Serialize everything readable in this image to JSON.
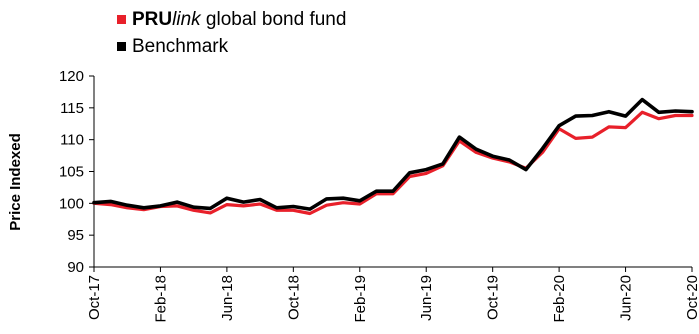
{
  "chart_data": {
    "type": "line",
    "ylabel": "Price Indexed",
    "ylim": [
      90,
      120
    ],
    "yticks": [
      90,
      95,
      100,
      105,
      110,
      115,
      120
    ],
    "xlim": [
      "2017-10",
      "2020-10"
    ],
    "xticks": [
      {
        "date": "2017-10",
        "label": "Oct-17"
      },
      {
        "date": "2018-02",
        "label": "Feb-18"
      },
      {
        "date": "2018-06",
        "label": "Jun-18"
      },
      {
        "date": "2018-10",
        "label": "Oct-18"
      },
      {
        "date": "2019-02",
        "label": "Feb-19"
      },
      {
        "date": "2019-06",
        "label": "Jun-19"
      },
      {
        "date": "2019-10",
        "label": "Oct-19"
      },
      {
        "date": "2020-02",
        "label": "Feb-20"
      },
      {
        "date": "2020-06",
        "label": "Jun-20"
      },
      {
        "date": "2020-10",
        "label": "Oct-20"
      }
    ],
    "x": [
      "2017-10",
      "2017-11",
      "2017-12",
      "2018-01",
      "2018-02",
      "2018-03",
      "2018-04",
      "2018-05",
      "2018-06",
      "2018-07",
      "2018-08",
      "2018-09",
      "2018-10",
      "2018-11",
      "2018-12",
      "2019-01",
      "2019-02",
      "2019-03",
      "2019-04",
      "2019-05",
      "2019-06",
      "2019-07",
      "2019-08",
      "2019-09",
      "2019-10",
      "2019-11",
      "2019-12",
      "2020-01",
      "2020-02",
      "2020-03",
      "2020-04",
      "2020-05",
      "2020-06",
      "2020-07",
      "2020-08",
      "2020-09",
      "2020-10"
    ],
    "series": [
      {
        "name_bold": "PRU",
        "name_italic": "link",
        "name_rest": " global bond fund",
        "color": "#e8202a",
        "values": [
          100.0,
          99.8,
          99.3,
          99.0,
          99.5,
          99.6,
          98.9,
          98.5,
          99.8,
          99.6,
          99.9,
          98.9,
          98.9,
          98.4,
          99.7,
          100.1,
          99.9,
          101.5,
          101.5,
          104.2,
          104.7,
          105.9,
          109.8,
          108.0,
          107.1,
          106.5,
          105.5,
          108.0,
          111.7,
          110.2,
          110.4,
          112.0,
          111.9,
          114.3,
          113.3,
          113.8,
          113.8
        ]
      },
      {
        "name": "Benchmark",
        "color": "#000000",
        "values": [
          100.1,
          100.3,
          99.7,
          99.3,
          99.6,
          100.2,
          99.4,
          99.2,
          100.8,
          100.2,
          100.6,
          99.3,
          99.5,
          99.1,
          100.7,
          100.8,
          100.4,
          101.9,
          101.9,
          104.8,
          105.3,
          106.2,
          110.4,
          108.5,
          107.4,
          106.8,
          105.3,
          108.6,
          112.2,
          113.7,
          113.8,
          114.4,
          113.7,
          116.3,
          114.3,
          114.5,
          114.4
        ]
      }
    ],
    "grid": false,
    "legend": "top-left"
  }
}
